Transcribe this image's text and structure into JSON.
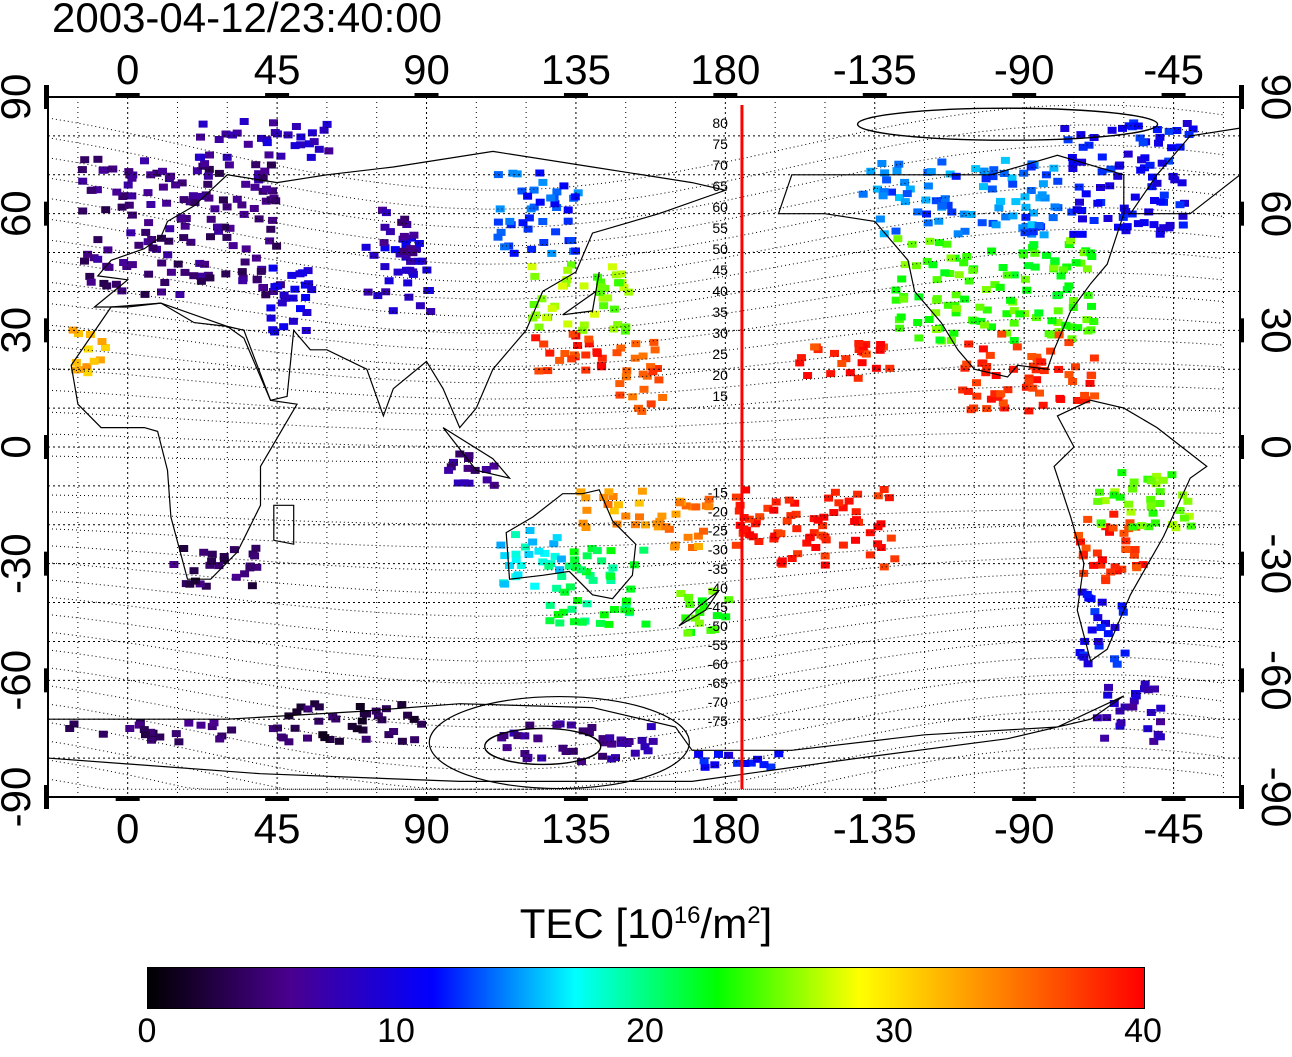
{
  "timestamp": "2003-04-12/23:40:00",
  "map": {
    "lon_labels": [
      "0",
      "45",
      "90",
      "135",
      "180",
      "-135",
      "-90",
      "-45"
    ],
    "lon_values": [
      0,
      45,
      90,
      135,
      180,
      225,
      270,
      315
    ],
    "lon_range": [
      -24,
      335
    ],
    "lat_labels": [
      "90",
      "60",
      "30",
      "0",
      "-30",
      "-60",
      "-90"
    ],
    "lat_values": [
      90,
      60,
      30,
      0,
      -30,
      -60,
      -90
    ],
    "lat_range": [
      -90,
      90
    ],
    "red_line_lon": 185,
    "contour_labels_north": [
      "80",
      "75",
      "70",
      "65",
      "60",
      "55",
      "50",
      "45",
      "40",
      "35",
      "30",
      "25",
      "20",
      "15"
    ],
    "contour_labels_south": [
      "-15",
      "-20",
      "-25",
      "-30",
      "-35",
      "-40",
      "-45",
      "-50",
      "-55",
      "-60",
      "-65",
      "-70",
      "-75"
    ],
    "grid": "dotted",
    "colors": {
      "red_line": "#ff0000"
    }
  },
  "colorbar": {
    "title_prefix": "TEC  [10",
    "title_exp1": "16",
    "title_mid": "/m",
    "title_exp2": "2",
    "title_suffix": "]",
    "ticks": [
      "0",
      "10",
      "20",
      "30",
      "40"
    ],
    "range": [
      0,
      40
    ],
    "colormap": [
      "#000000",
      "#4a0090",
      "#0000ff",
      "#00ffff",
      "#00ff00",
      "#ffff00",
      "#ff8000",
      "#ff0000"
    ]
  }
}
